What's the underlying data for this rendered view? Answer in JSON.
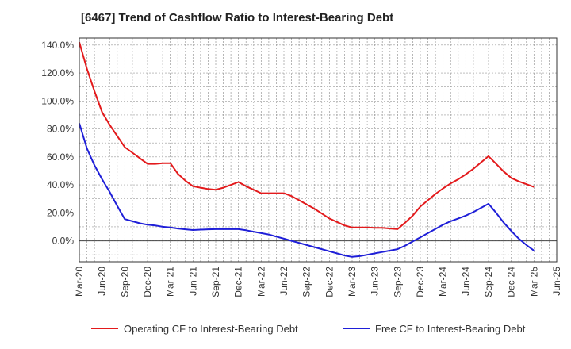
{
  "chart_data": {
    "type": "line",
    "title": "[6467]  Trend of Cashflow Ratio to Interest-Bearing Debt",
    "xlabel": "",
    "ylabel": "",
    "ylim": [
      -15,
      145
    ],
    "y_ticks": [
      0,
      20,
      40,
      60,
      80,
      100,
      120,
      140
    ],
    "y_tick_suffix": "%",
    "grid": true,
    "legend_position": "bottom",
    "x_ticks": [
      "Mar-20",
      "Jun-20",
      "Sep-20",
      "Dec-20",
      "Mar-21",
      "Jun-21",
      "Sep-21",
      "Dec-21",
      "Mar-22",
      "Jun-22",
      "Sep-22",
      "Dec-22",
      "Mar-23",
      "Jun-23",
      "Sep-23",
      "Dec-23",
      "Mar-24",
      "Jun-24",
      "Sep-24",
      "Dec-24",
      "Mar-25",
      "Jun-25"
    ],
    "x": [
      "2020-03",
      "2020-04",
      "2020-05",
      "2020-06",
      "2020-07",
      "2020-08",
      "2020-09",
      "2020-10",
      "2020-11",
      "2020-12",
      "2021-01",
      "2021-02",
      "2021-03",
      "2021-04",
      "2021-05",
      "2021-06",
      "2021-07",
      "2021-08",
      "2021-09",
      "2021-10",
      "2021-11",
      "2021-12",
      "2022-01",
      "2022-02",
      "2022-03",
      "2022-04",
      "2022-05",
      "2022-06",
      "2022-07",
      "2022-08",
      "2022-09",
      "2022-10",
      "2022-11",
      "2022-12",
      "2023-01",
      "2023-02",
      "2023-03",
      "2023-04",
      "2023-05",
      "2023-06",
      "2023-07",
      "2023-08",
      "2023-09",
      "2023-10",
      "2023-11",
      "2023-12",
      "2024-01",
      "2024-02",
      "2024-03",
      "2024-04",
      "2024-05",
      "2024-06",
      "2024-07",
      "2024-08",
      "2024-09",
      "2024-10",
      "2024-11",
      "2024-12",
      "2025-01",
      "2025-02",
      "2025-03"
    ],
    "series": [
      {
        "name": "Operating CF to Interest-Bearing Debt",
        "color": "#e31a1c",
        "values": [
          142,
          123,
          107,
          92,
          83,
          75,
          67,
          63,
          59,
          55,
          55,
          55.5,
          55.5,
          48,
          43,
          39,
          38,
          37,
          36.5,
          38,
          40,
          42,
          39,
          36.5,
          34,
          34,
          34,
          34,
          32,
          29,
          26,
          23,
          19.5,
          16,
          13.5,
          11,
          9.5,
          9.5,
          9.5,
          9.3,
          9.2,
          8.8,
          8.3,
          13,
          18,
          24.5,
          29,
          33.5,
          37.5,
          41,
          44,
          47.5,
          51.5,
          56,
          60.5,
          55,
          49.5,
          45,
          42.5,
          40.5,
          38.5
        ]
      },
      {
        "name": "Free CF to Interest-Bearing Debt",
        "color": "#1f1fd8",
        "values": [
          84,
          66,
          54,
          44,
          35,
          25,
          15.5,
          14,
          12.5,
          11.5,
          11,
          10,
          9.5,
          8.8,
          8.2,
          7.7,
          8,
          8.2,
          8.3,
          8.3,
          8.3,
          8.3,
          7.5,
          6.5,
          5.5,
          4.5,
          3,
          1.5,
          0,
          -1.5,
          -3,
          -4.5,
          -6,
          -7.5,
          -9,
          -10.5,
          -11.5,
          -11,
          -10,
          -9,
          -8,
          -7,
          -6,
          -3.5,
          -0.5,
          2.5,
          5.5,
          8.5,
          11.5,
          14,
          16,
          18,
          20.5,
          23.5,
          26.5,
          20,
          13,
          7,
          1.5,
          -3,
          -7
        ]
      }
    ]
  }
}
